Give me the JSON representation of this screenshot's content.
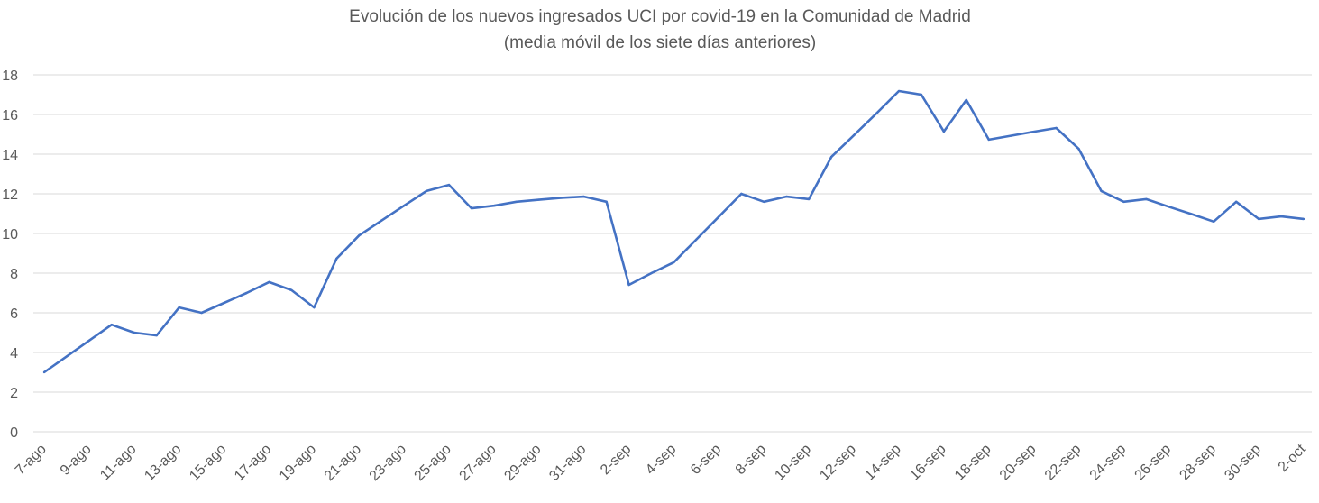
{
  "chart_data": {
    "type": "line",
    "title": "Evolución de los nuevos ingresados UCI por covid-19 en la Comunidad de Madrid",
    "subtitle": "(media móvil de los siete días anteriores)",
    "xlabel": "",
    "ylabel": "",
    "ylim": [
      0,
      18
    ],
    "yticks": [
      0,
      2,
      4,
      6,
      8,
      10,
      12,
      14,
      16,
      18
    ],
    "grid": true,
    "legend": "none",
    "line_color": "#4472C4",
    "grid_color": "#D9D9D9",
    "x": [
      "7-ago",
      "8-ago",
      "9-ago",
      "10-ago",
      "11-ago",
      "12-ago",
      "13-ago",
      "14-ago",
      "15-ago",
      "16-ago",
      "17-ago",
      "18-ago",
      "19-ago",
      "20-ago",
      "21-ago",
      "22-ago",
      "23-ago",
      "24-ago",
      "25-ago",
      "26-ago",
      "27-ago",
      "28-ago",
      "29-ago",
      "30-ago",
      "31-ago",
      "1-sep",
      "2-sep",
      "3-sep",
      "4-sep",
      "5-sep",
      "6-sep",
      "7-sep",
      "8-sep",
      "9-sep",
      "10-sep",
      "11-sep",
      "12-sep",
      "13-sep",
      "14-sep",
      "15-sep",
      "16-sep",
      "17-sep",
      "18-sep",
      "19-sep",
      "20-sep",
      "21-sep",
      "22-sep",
      "23-sep",
      "24-sep",
      "25-sep",
      "26-sep",
      "27-sep",
      "28-sep",
      "29-sep",
      "30-sep",
      "1-oct",
      "2-oct"
    ],
    "tick_labels": [
      "7-ago",
      "9-ago",
      "11-ago",
      "13-ago",
      "15-ago",
      "17-ago",
      "19-ago",
      "21-ago",
      "23-ago",
      "25-ago",
      "27-ago",
      "29-ago",
      "31-ago",
      "2-sep",
      "4-sep",
      "6-sep",
      "8-sep",
      "10-sep",
      "12-sep",
      "14-sep",
      "16-sep",
      "18-sep",
      "20-sep",
      "22-sep",
      "24-sep",
      "26-sep",
      "28-sep",
      "30-sep",
      "2-oct"
    ],
    "values": [
      3.0,
      3.8,
      4.6,
      5.4,
      5.0,
      4.86,
      6.27,
      6.0,
      6.5,
      7.0,
      7.55,
      7.14,
      6.27,
      8.73,
      9.9,
      10.65,
      11.4,
      12.14,
      12.45,
      11.27,
      11.4,
      11.6,
      11.7,
      11.8,
      11.86,
      11.6,
      7.41,
      8.0,
      8.55,
      9.7,
      10.85,
      12.0,
      11.6,
      11.86,
      11.73,
      13.86,
      14.95,
      16.05,
      17.18,
      17.0,
      15.14,
      16.73,
      14.73,
      14.93,
      15.13,
      15.32,
      14.27,
      12.14,
      11.6,
      11.73,
      11.35,
      10.98,
      10.6,
      11.6,
      10.73,
      10.86,
      10.73
    ]
  }
}
